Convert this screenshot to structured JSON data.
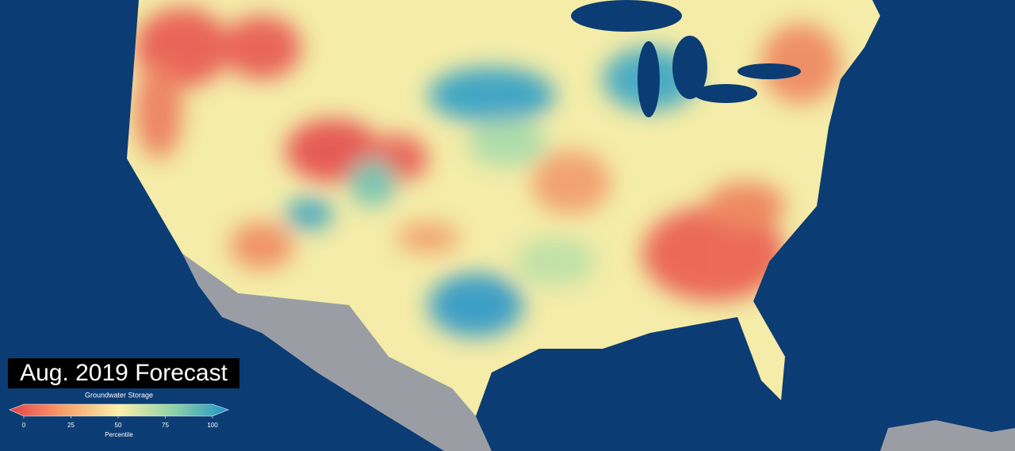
{
  "title": "Aug. 2019 Forecast",
  "colorbar": {
    "label": "Groundwater Storage",
    "axis_label": "Percentile",
    "lim": [
      0,
      100
    ],
    "ticks": [
      0,
      25,
      50,
      75,
      100
    ],
    "colors": [
      "#e8414a",
      "#f7a16a",
      "#fbf0a8",
      "#8fd3a6",
      "#1d93c9"
    ]
  }
}
